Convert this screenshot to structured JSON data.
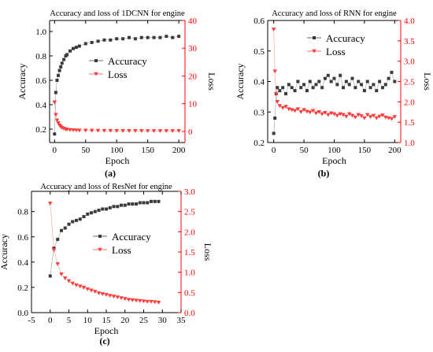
{
  "colors": {
    "accuracy": "#3a3a3a",
    "loss": "#ff3b3b",
    "axis_left": "#000000",
    "axis_right": "#ff0000"
  },
  "chart_data": [
    {
      "id": "a",
      "type": "scatter",
      "title": "Accuracy and loss of 1DCNN for engine",
      "panel_label": "(a)",
      "xlabel": "Epoch",
      "ylabel_left": "Accuracy",
      "ylabel_right": "Loss",
      "xlim": [
        -8,
        210
      ],
      "ylim_left": [
        0.09,
        1.09
      ],
      "ylim_right": [
        -4,
        40
      ],
      "xticks": [
        0,
        50,
        100,
        150,
        200
      ],
      "yticks_left": [
        0.2,
        0.4,
        0.6,
        0.8,
        1.0
      ],
      "yticks_left_labels": [
        "0.2",
        "0.4",
        "0.6",
        "0.8",
        "1.0"
      ],
      "yticks_right": [
        0,
        10,
        20,
        30,
        40
      ],
      "yticks_right_labels": [
        "0",
        "10",
        "20",
        "30",
        "40"
      ],
      "legend": {
        "position": "center",
        "entries": [
          "Accuracy",
          "Loss"
        ]
      },
      "series": [
        {
          "name": "Accuracy",
          "axis": "left",
          "marker": "square",
          "x": [
            0,
            2,
            4,
            6,
            8,
            10,
            12,
            15,
            18,
            20,
            25,
            30,
            35,
            40,
            50,
            60,
            70,
            80,
            90,
            100,
            110,
            120,
            130,
            140,
            150,
            160,
            170,
            180,
            190,
            200
          ],
          "y": [
            0.16,
            0.5,
            0.6,
            0.64,
            0.68,
            0.71,
            0.74,
            0.77,
            0.8,
            0.81,
            0.84,
            0.86,
            0.87,
            0.88,
            0.9,
            0.91,
            0.92,
            0.93,
            0.93,
            0.94,
            0.94,
            0.95,
            0.94,
            0.95,
            0.95,
            0.95,
            0.95,
            0.96,
            0.95,
            0.96
          ]
        },
        {
          "name": "Loss",
          "axis": "right",
          "marker": "triangle-down",
          "x": [
            0,
            2,
            4,
            6,
            8,
            10,
            12,
            15,
            18,
            20,
            25,
            30,
            35,
            40,
            50,
            60,
            70,
            80,
            90,
            100,
            110,
            120,
            130,
            140,
            150,
            160,
            170,
            180,
            190,
            200
          ],
          "y": [
            10.5,
            6.0,
            4.0,
            3.0,
            2.2,
            1.7,
            1.3,
            1.0,
            0.8,
            0.7,
            0.55,
            0.48,
            0.42,
            0.38,
            0.32,
            0.28,
            0.25,
            0.23,
            0.22,
            0.2,
            0.2,
            0.19,
            0.18,
            0.18,
            0.17,
            0.17,
            0.16,
            0.16,
            0.15,
            0.15
          ]
        }
      ]
    },
    {
      "id": "b",
      "type": "scatter",
      "title": "Accuracy and loss of RNN for engine",
      "panel_label": "(b)",
      "xlabel": "Epoch",
      "ylabel_left": "Accuracy",
      "ylabel_right": "Loss",
      "xlim": [
        -10,
        210
      ],
      "ylim_left": [
        0.2,
        0.6
      ],
      "ylim_right": [
        1.0,
        4.0
      ],
      "xticks": [
        0,
        50,
        100,
        150,
        200
      ],
      "yticks_left": [
        0.2,
        0.3,
        0.4,
        0.5,
        0.6
      ],
      "yticks_left_labels": [
        "0.2",
        "0.3",
        "0.4",
        "0.5",
        "0.6"
      ],
      "yticks_right": [
        1.0,
        1.5,
        2.0,
        2.5,
        3.0,
        3.5,
        4.0
      ],
      "yticks_right_labels": [
        "1.0",
        "1.5",
        "2.0",
        "2.5",
        "3.0",
        "3.5",
        "4.0"
      ],
      "legend": {
        "position": "top-right",
        "entries": [
          "Accuracy",
          "Loss"
        ]
      },
      "series": [
        {
          "name": "Accuracy",
          "axis": "left",
          "marker": "square",
          "x": [
            0,
            2,
            4,
            6,
            10,
            15,
            20,
            25,
            30,
            35,
            40,
            45,
            50,
            55,
            60,
            65,
            70,
            75,
            80,
            85,
            90,
            95,
            100,
            105,
            110,
            115,
            120,
            125,
            130,
            135,
            140,
            145,
            150,
            155,
            160,
            165,
            170,
            175,
            180,
            185,
            190,
            195,
            200
          ],
          "y": [
            0.23,
            0.28,
            0.36,
            0.38,
            0.37,
            0.38,
            0.36,
            0.39,
            0.38,
            0.37,
            0.4,
            0.38,
            0.39,
            0.37,
            0.4,
            0.38,
            0.39,
            0.4,
            0.38,
            0.41,
            0.42,
            0.4,
            0.41,
            0.39,
            0.42,
            0.38,
            0.4,
            0.39,
            0.41,
            0.38,
            0.4,
            0.39,
            0.37,
            0.4,
            0.38,
            0.39,
            0.37,
            0.4,
            0.38,
            0.39,
            0.41,
            0.43,
            0.4
          ]
        },
        {
          "name": "Loss",
          "axis": "right",
          "marker": "triangle-down",
          "x": [
            0,
            2,
            4,
            6,
            10,
            15,
            20,
            25,
            30,
            35,
            40,
            45,
            50,
            55,
            60,
            65,
            70,
            75,
            80,
            85,
            90,
            95,
            100,
            105,
            110,
            115,
            120,
            125,
            130,
            135,
            140,
            145,
            150,
            155,
            160,
            165,
            170,
            175,
            180,
            185,
            190,
            195,
            200
          ],
          "y": [
            3.78,
            2.75,
            2.2,
            2.0,
            1.9,
            1.85,
            1.88,
            1.82,
            1.8,
            1.78,
            1.82,
            1.75,
            1.8,
            1.76,
            1.74,
            1.78,
            1.72,
            1.75,
            1.7,
            1.73,
            1.68,
            1.72,
            1.7,
            1.66,
            1.7,
            1.68,
            1.64,
            1.7,
            1.66,
            1.62,
            1.68,
            1.65,
            1.6,
            1.68,
            1.63,
            1.66,
            1.6,
            1.64,
            1.67,
            1.62,
            1.6,
            1.58,
            1.63
          ]
        }
      ]
    },
    {
      "id": "c",
      "type": "scatter",
      "title": "Accuracy and loss of ResNet for engine",
      "panel_label": "(c)",
      "xlabel": "Epoch",
      "ylabel_left": "Accuracy",
      "ylabel_right": "Loss",
      "xlim": [
        -5,
        35
      ],
      "ylim_left": [
        0.0,
        0.96
      ],
      "ylim_right": [
        0.0,
        3.0
      ],
      "xticks": [
        -5,
        0,
        5,
        10,
        15,
        20,
        25,
        30,
        35
      ],
      "yticks_left": [
        0.0,
        0.2,
        0.4,
        0.6,
        0.8
      ],
      "yticks_left_labels": [
        "0.0",
        "0.2",
        "0.4",
        "0.6",
        "0.8"
      ],
      "yticks_right": [
        0.0,
        0.5,
        1.0,
        1.5,
        2.0,
        2.5,
        3.0
      ],
      "yticks_right_labels": [
        "0.0",
        "0.5",
        "1.0",
        "1.5",
        "2.0",
        "2.5",
        "3.0"
      ],
      "legend": {
        "position": "right",
        "entries": [
          "Accuracy",
          "Loss"
        ]
      },
      "series": [
        {
          "name": "Accuracy",
          "axis": "left",
          "marker": "square",
          "x": [
            0,
            1,
            2,
            3,
            4,
            5,
            6,
            7,
            8,
            9,
            10,
            11,
            12,
            13,
            14,
            15,
            16,
            17,
            18,
            19,
            20,
            21,
            22,
            23,
            24,
            25,
            26,
            27,
            28,
            29
          ],
          "y": [
            0.29,
            0.51,
            0.58,
            0.65,
            0.67,
            0.7,
            0.72,
            0.73,
            0.74,
            0.76,
            0.78,
            0.79,
            0.8,
            0.81,
            0.82,
            0.82,
            0.83,
            0.84,
            0.84,
            0.85,
            0.85,
            0.86,
            0.86,
            0.86,
            0.87,
            0.87,
            0.87,
            0.88,
            0.88,
            0.88
          ]
        },
        {
          "name": "Loss",
          "axis": "right",
          "marker": "triangle-down",
          "x": [
            0,
            1,
            2,
            3,
            4,
            5,
            6,
            7,
            8,
            9,
            10,
            11,
            12,
            13,
            14,
            15,
            16,
            17,
            18,
            19,
            20,
            21,
            22,
            23,
            24,
            25,
            26,
            27,
            28,
            29
          ],
          "y": [
            2.7,
            1.55,
            1.2,
            0.95,
            0.85,
            0.78,
            0.72,
            0.68,
            0.65,
            0.62,
            0.58,
            0.55,
            0.52,
            0.48,
            0.46,
            0.44,
            0.42,
            0.4,
            0.38,
            0.36,
            0.34,
            0.32,
            0.31,
            0.3,
            0.29,
            0.28,
            0.27,
            0.27,
            0.26,
            0.25
          ]
        }
      ]
    }
  ]
}
